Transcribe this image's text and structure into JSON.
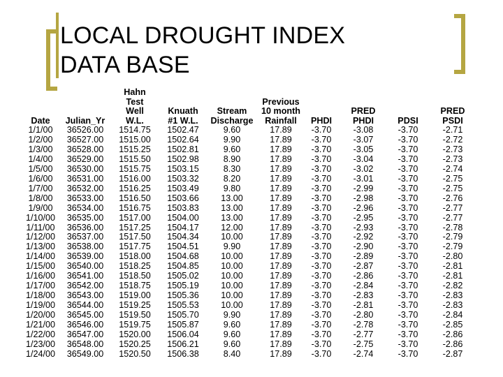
{
  "slide": {
    "title_line1": "LOCAL DROUGHT INDEX",
    "title_line2": "DATA BASE"
  },
  "table": {
    "headers": [
      "Date",
      "Julian_Yr",
      "Hahn\nTest\nWell\nW.L.",
      "Knuath\n#1 W.L.",
      "Stream\nDischarge",
      "Previous\n10 month\nRainfall",
      "PHDI",
      "PRED\nPHDI",
      "PDSI",
      "PRED\nPSDI"
    ],
    "rows": [
      [
        "1/1/00",
        "36526.00",
        "1514.75",
        "1502.47",
        "9.60",
        "17.89",
        "-3.70",
        "-3.08",
        "-3.70",
        "-2.71"
      ],
      [
        "1/2/00",
        "36527.00",
        "1515.00",
        "1502.64",
        "9.90",
        "17.89",
        "-3.70",
        "-3.07",
        "-3.70",
        "-2.72"
      ],
      [
        "1/3/00",
        "36528.00",
        "1515.25",
        "1502.81",
        "9.60",
        "17.89",
        "-3.70",
        "-3.05",
        "-3.70",
        "-2.73"
      ],
      [
        "1/4/00",
        "36529.00",
        "1515.50",
        "1502.98",
        "8.90",
        "17.89",
        "-3.70",
        "-3.04",
        "-3.70",
        "-2.73"
      ],
      [
        "1/5/00",
        "36530.00",
        "1515.75",
        "1503.15",
        "8.30",
        "17.89",
        "-3.70",
        "-3.02",
        "-3.70",
        "-2.74"
      ],
      [
        "1/6/00",
        "36531.00",
        "1516.00",
        "1503.32",
        "8.20",
        "17.89",
        "-3.70",
        "-3.01",
        "-3.70",
        "-2.75"
      ],
      [
        "1/7/00",
        "36532.00",
        "1516.25",
        "1503.49",
        "9.80",
        "17.89",
        "-3.70",
        "-2.99",
        "-3.70",
        "-2.75"
      ],
      [
        "1/8/00",
        "36533.00",
        "1516.50",
        "1503.66",
        "13.00",
        "17.89",
        "-3.70",
        "-2.98",
        "-3.70",
        "-2.76"
      ],
      [
        "1/9/00",
        "36534.00",
        "1516.75",
        "1503.83",
        "13.00",
        "17.89",
        "-3.70",
        "-2.96",
        "-3.70",
        "-2.77"
      ],
      [
        "1/10/00",
        "36535.00",
        "1517.00",
        "1504.00",
        "13.00",
        "17.89",
        "-3.70",
        "-2.95",
        "-3.70",
        "-2.77"
      ],
      [
        "1/11/00",
        "36536.00",
        "1517.25",
        "1504.17",
        "12.00",
        "17.89",
        "-3.70",
        "-2.93",
        "-3.70",
        "-2.78"
      ],
      [
        "1/12/00",
        "36537.00",
        "1517.50",
        "1504.34",
        "10.00",
        "17.89",
        "-3.70",
        "-2.92",
        "-3.70",
        "-2.79"
      ],
      [
        "1/13/00",
        "36538.00",
        "1517.75",
        "1504.51",
        "9.90",
        "17.89",
        "-3.70",
        "-2.90",
        "-3.70",
        "-2.79"
      ],
      [
        "1/14/00",
        "36539.00",
        "1518.00",
        "1504.68",
        "10.00",
        "17.89",
        "-3.70",
        "-2.89",
        "-3.70",
        "-2.80"
      ],
      [
        "1/15/00",
        "36540.00",
        "1518.25",
        "1504.85",
        "10.00",
        "17.89",
        "-3.70",
        "-2.87",
        "-3.70",
        "-2.81"
      ],
      [
        "1/16/00",
        "36541.00",
        "1518.50",
        "1505.02",
        "10.00",
        "17.89",
        "-3.70",
        "-2.86",
        "-3.70",
        "-2.81"
      ],
      [
        "1/17/00",
        "36542.00",
        "1518.75",
        "1505.19",
        "10.00",
        "17.89",
        "-3.70",
        "-2.84",
        "-3.70",
        "-2.82"
      ],
      [
        "1/18/00",
        "36543.00",
        "1519.00",
        "1505.36",
        "10.00",
        "17.89",
        "-3.70",
        "-2.83",
        "-3.70",
        "-2.83"
      ],
      [
        "1/19/00",
        "36544.00",
        "1519.25",
        "1505.53",
        "10.00",
        "17.89",
        "-3.70",
        "-2.81",
        "-3.70",
        "-2.83"
      ],
      [
        "1/20/00",
        "36545.00",
        "1519.50",
        "1505.70",
        "9.90",
        "17.89",
        "-3.70",
        "-2.80",
        "-3.70",
        "-2.84"
      ],
      [
        "1/21/00",
        "36546.00",
        "1519.75",
        "1505.87",
        "9.60",
        "17.89",
        "-3.70",
        "-2.78",
        "-3.70",
        "-2.85"
      ],
      [
        "1/22/00",
        "36547.00",
        "1520.00",
        "1506.04",
        "9.60",
        "17.89",
        "-3.70",
        "-2.77",
        "-3.70",
        "-2.86"
      ],
      [
        "1/23/00",
        "36548.00",
        "1520.25",
        "1506.21",
        "9.60",
        "17.89",
        "-3.70",
        "-2.75",
        "-3.70",
        "-2.86"
      ],
      [
        "1/24/00",
        "36549.00",
        "1520.50",
        "1506.38",
        "8.40",
        "17.89",
        "-3.70",
        "-2.74",
        "-3.70",
        "-2.87"
      ]
    ]
  },
  "theme": {
    "accent": "#b5a642"
  }
}
